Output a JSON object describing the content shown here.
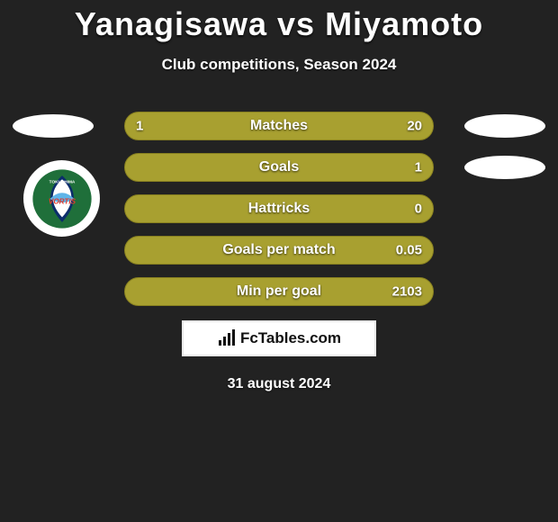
{
  "title": "Yanagisawa vs Miyamoto",
  "subtitle": "Club competitions, Season 2024",
  "date": "31 august 2024",
  "brand": "FcTables.com",
  "colors": {
    "left": "#a8a030",
    "right": "#a8a030",
    "bar_bg": "#a8a030",
    "bar_border": "#888020",
    "background": "#222222",
    "text": "#ffffff",
    "oval": "#ffffff"
  },
  "club_badge": {
    "name": "Tokushima Vortis",
    "primary": "#1f6f3a",
    "secondary": "#0b2d6b",
    "accent": "#e23b2e"
  },
  "rows": [
    {
      "label": "Matches",
      "left_val": "1",
      "right_val": "20",
      "left_pct": 5,
      "right_pct": 95,
      "show_left_oval": true,
      "show_right_oval": true
    },
    {
      "label": "Goals",
      "left_val": "",
      "right_val": "1",
      "left_pct": 0,
      "right_pct": 100,
      "show_left_oval": false,
      "show_right_oval": true
    },
    {
      "label": "Hattricks",
      "left_val": "",
      "right_val": "0",
      "left_pct": 0,
      "right_pct": 100,
      "show_left_oval": false,
      "show_right_oval": false
    },
    {
      "label": "Goals per match",
      "left_val": "",
      "right_val": "0.05",
      "left_pct": 0,
      "right_pct": 100,
      "show_left_oval": false,
      "show_right_oval": false
    },
    {
      "label": "Min per goal",
      "left_val": "",
      "right_val": "2103",
      "left_pct": 0,
      "right_pct": 100,
      "show_left_oval": false,
      "show_right_oval": false
    }
  ]
}
